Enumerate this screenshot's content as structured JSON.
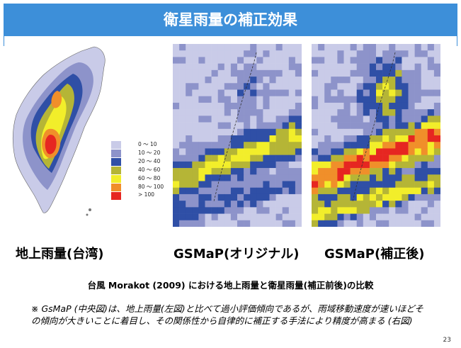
{
  "title": "衛星雨量の補正効果",
  "legend": {
    "items": [
      {
        "label": "0 ～ 10",
        "color": "#c9cbe8"
      },
      {
        "label": "10 ～ 20",
        "color": "#8d93ca"
      },
      {
        "label": "20 ～ 40",
        "color": "#2f4fa6"
      },
      {
        "label": "40 ～ 60",
        "color": "#b5b536"
      },
      {
        "label": "60 ～ 80",
        "color": "#f2ee2a"
      },
      {
        "label": "80 ～ 100",
        "color": "#f08f2a"
      },
      {
        "label": "> 100",
        "color": "#e62621"
      }
    ]
  },
  "maps": [
    {
      "label": "地上雨量(台湾)"
    },
    {
      "label": "GSMaP(オリジナル)"
    },
    {
      "label": "GSMaP(補正後)"
    }
  ],
  "caption": "台風 Morakot (2009) における地上雨量と衛星雨量(補正前後)の比較",
  "note": "※ GsMaP (中央図)は、地上雨量(左図)と比べて過小評価傾向であるが、雨域移動速度が速いほどその傾向が大きいことに着目し、その関係性から自律的に補正する手法により精度が高まる (右図)",
  "page_number": "23"
}
